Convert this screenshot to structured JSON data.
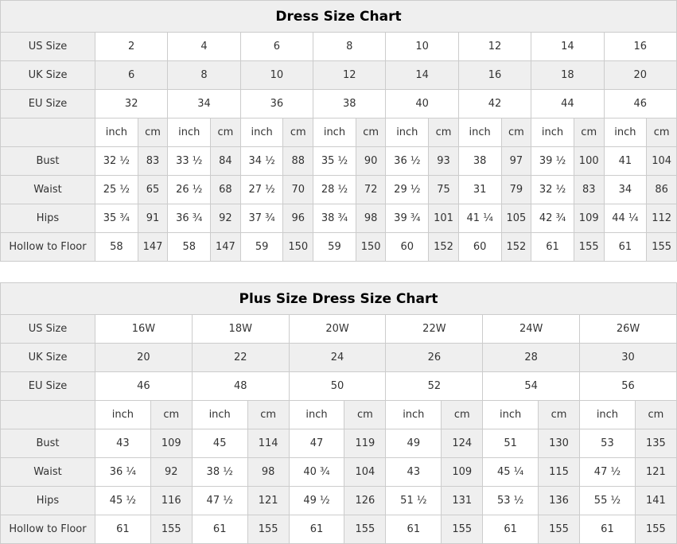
{
  "style": {
    "page_background": "#ffffff",
    "shaded_cell_bg": "#efefef",
    "border_color": "#cccccc",
    "text_color": "#333333",
    "title_color": "#000000"
  },
  "charts": [
    {
      "title": "Dress Size Chart",
      "units": {
        "inch": "inch",
        "cm": "cm"
      },
      "size_rows": [
        {
          "label": "US Size",
          "values": [
            "2",
            "4",
            "6",
            "8",
            "10",
            "12",
            "14",
            "16"
          ]
        },
        {
          "label": "UK Size",
          "values": [
            "6",
            "8",
            "10",
            "12",
            "14",
            "16",
            "18",
            "20"
          ]
        },
        {
          "label": "EU Size",
          "values": [
            "32",
            "34",
            "36",
            "38",
            "40",
            "42",
            "44",
            "46"
          ]
        }
      ],
      "measure_rows": [
        {
          "label": "Bust",
          "values": [
            [
              "32 ½",
              "83"
            ],
            [
              "33 ½",
              "84"
            ],
            [
              "34 ½",
              "88"
            ],
            [
              "35 ½",
              "90"
            ],
            [
              "36 ½",
              "93"
            ],
            [
              "38",
              "97"
            ],
            [
              "39 ½",
              "100"
            ],
            [
              "41",
              "104"
            ]
          ]
        },
        {
          "label": "Waist",
          "values": [
            [
              "25 ½",
              "65"
            ],
            [
              "26 ½",
              "68"
            ],
            [
              "27 ½",
              "70"
            ],
            [
              "28 ½",
              "72"
            ],
            [
              "29 ½",
              "75"
            ],
            [
              "31",
              "79"
            ],
            [
              "32 ½",
              "83"
            ],
            [
              "34",
              "86"
            ]
          ]
        },
        {
          "label": "Hips",
          "values": [
            [
              "35 ¾",
              "91"
            ],
            [
              "36 ¾",
              "92"
            ],
            [
              "37 ¾",
              "96"
            ],
            [
              "38 ¾",
              "98"
            ],
            [
              "39 ¾",
              "101"
            ],
            [
              "41 ¼",
              "105"
            ],
            [
              "42 ¾",
              "109"
            ],
            [
              "44 ¼",
              "112"
            ]
          ]
        },
        {
          "label": "Hollow to Floor",
          "values": [
            [
              "58",
              "147"
            ],
            [
              "58",
              "147"
            ],
            [
              "59",
              "150"
            ],
            [
              "59",
              "150"
            ],
            [
              "60",
              "152"
            ],
            [
              "60",
              "152"
            ],
            [
              "61",
              "155"
            ],
            [
              "61",
              "155"
            ]
          ]
        }
      ]
    },
    {
      "title": "Plus Size Dress Size Chart",
      "units": {
        "inch": "inch",
        "cm": "cm"
      },
      "size_rows": [
        {
          "label": "US Size",
          "values": [
            "16W",
            "18W",
            "20W",
            "22W",
            "24W",
            "26W"
          ]
        },
        {
          "label": "UK Size",
          "values": [
            "20",
            "22",
            "24",
            "26",
            "28",
            "30"
          ]
        },
        {
          "label": "EU Size",
          "values": [
            "46",
            "48",
            "50",
            "52",
            "54",
            "56"
          ]
        }
      ],
      "measure_rows": [
        {
          "label": "Bust",
          "values": [
            [
              "43",
              "109"
            ],
            [
              "45",
              "114"
            ],
            [
              "47",
              "119"
            ],
            [
              "49",
              "124"
            ],
            [
              "51",
              "130"
            ],
            [
              "53",
              "135"
            ]
          ]
        },
        {
          "label": "Waist",
          "values": [
            [
              "36 ¼",
              "92"
            ],
            [
              "38 ½",
              "98"
            ],
            [
              "40 ¾",
              "104"
            ],
            [
              "43",
              "109"
            ],
            [
              "45 ¼",
              "115"
            ],
            [
              "47 ½",
              "121"
            ]
          ]
        },
        {
          "label": "Hips",
          "values": [
            [
              "45 ½",
              "116"
            ],
            [
              "47 ½",
              "121"
            ],
            [
              "49 ½",
              "126"
            ],
            [
              "51 ½",
              "131"
            ],
            [
              "53 ½",
              "136"
            ],
            [
              "55 ½",
              "141"
            ]
          ]
        },
        {
          "label": "Hollow to Floor",
          "values": [
            [
              "61",
              "155"
            ],
            [
              "61",
              "155"
            ],
            [
              "61",
              "155"
            ],
            [
              "61",
              "155"
            ],
            [
              "61",
              "155"
            ],
            [
              "61",
              "155"
            ]
          ]
        }
      ]
    }
  ]
}
